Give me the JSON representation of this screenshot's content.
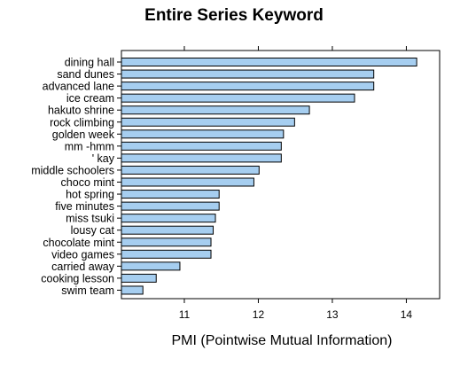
{
  "chart_data": {
    "type": "bar",
    "orientation": "horizontal",
    "title": "Entire Series Keyword",
    "xlabel": "PMI (Pointwise Mutual Information)",
    "ylabel": "",
    "xlim": [
      10.15,
      14.45
    ],
    "xticks": [
      11,
      12,
      13,
      14
    ],
    "grid": false,
    "bar_fill": "#a6cef0",
    "bar_stroke": "#000000",
    "categories": [
      "dining hall",
      "sand dunes",
      "advanced lane",
      "ice cream",
      "hakuto shrine",
      "rock climbing",
      "golden week",
      "mm -hmm",
      "' kay",
      "middle schoolers",
      "choco mint",
      "hot spring",
      "five minutes",
      "miss tsuki",
      "lousy cat",
      "chocolate mint",
      "video games",
      "carried away",
      "cooking lesson",
      "swim team"
    ],
    "values": [
      14.14,
      13.56,
      13.56,
      13.3,
      12.69,
      12.49,
      12.34,
      12.31,
      12.31,
      12.01,
      11.94,
      11.47,
      11.47,
      11.42,
      11.39,
      11.36,
      11.36,
      10.94,
      10.62,
      10.44
    ]
  }
}
